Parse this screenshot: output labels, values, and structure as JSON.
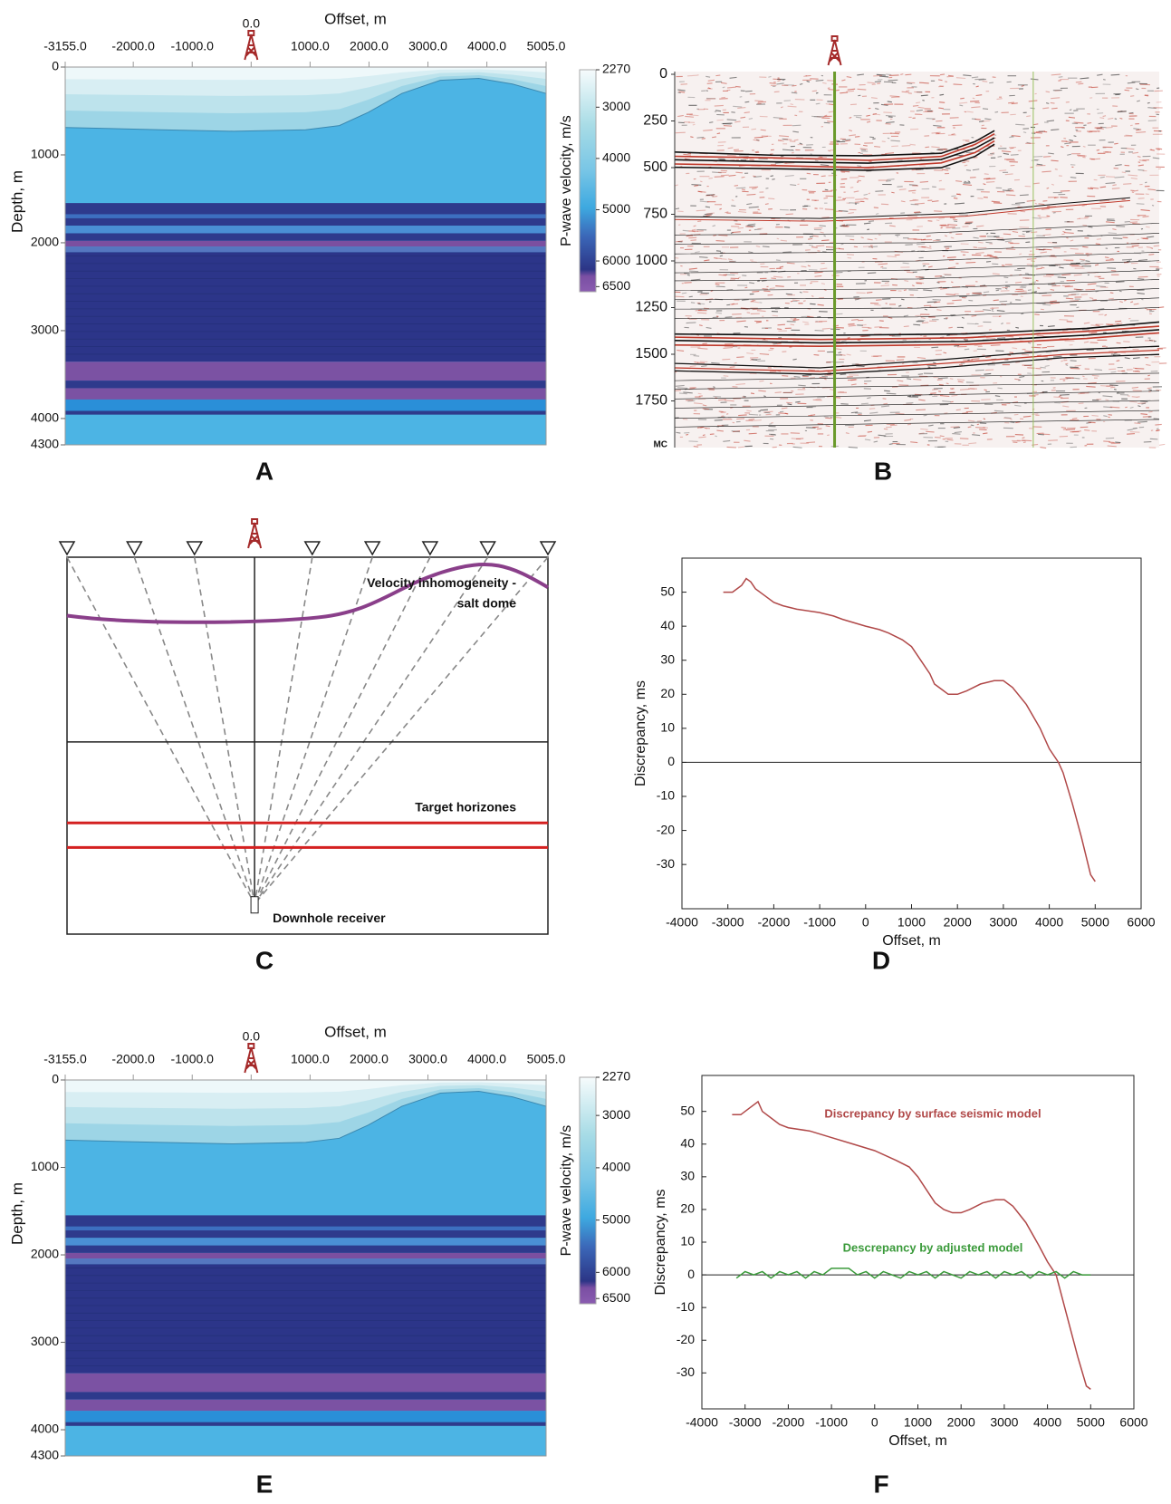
{
  "chart_data": [
    {
      "type": "velocity_model",
      "label": "A",
      "x_label": "Offset, m",
      "y_label": "Depth, m",
      "xlim": [
        -3155,
        5005
      ],
      "xticks": [
        {
          "value": -3155,
          "label": "-3155.0"
        },
        {
          "value": -2000,
          "label": "-2000.0"
        },
        {
          "value": -1000,
          "label": "-1000.0"
        },
        {
          "value": 0,
          "label": "0.0"
        },
        {
          "value": 1000,
          "label": "1000.0"
        },
        {
          "value": 2000,
          "label": "2000.0"
        },
        {
          "value": 3000,
          "label": "3000.0"
        },
        {
          "value": 4000,
          "label": "4000.0"
        },
        {
          "value": 5005,
          "label": "5005.0"
        }
      ],
      "ylim": [
        0,
        4300
      ],
      "yticks": [
        0,
        1000,
        2000,
        3000,
        4000,
        4300
      ],
      "colorbar": {
        "label": "P-wave velocity, m/s",
        "clim": [
          2270,
          6600
        ],
        "ticks": [
          2270,
          3000,
          4000,
          5000,
          6000,
          6500
        ]
      }
    },
    {
      "type": "seismic_section",
      "label": "B",
      "ylim": [
        0,
        2000
      ],
      "yticks": [
        0,
        250,
        500,
        750,
        1000,
        1250,
        1500,
        1750
      ],
      "y_end_label": "MC"
    },
    {
      "type": "diagram",
      "label": "C",
      "annotations": [
        "Velocity inhomogeneity -",
        "salt dome",
        "Target horizones",
        "Downhole receiver"
      ]
    },
    {
      "type": "line",
      "label": "D",
      "x_label": "Offset, m",
      "y_label": "Discrepancy, ms",
      "xlim": [
        -4000,
        6000
      ],
      "xticks": [
        -4000,
        -3000,
        -2000,
        -1000,
        0,
        1000,
        2000,
        3000,
        4000,
        5000,
        6000
      ],
      "ylim": [
        -43,
        60
      ],
      "yticks": [
        -30,
        -20,
        -10,
        0,
        10,
        20,
        30,
        40,
        50
      ],
      "zero_line": true,
      "series": [
        {
          "color": "#b04848",
          "x": [
            -3100,
            -2900,
            -2700,
            -2600,
            -2500,
            -2400,
            -2200,
            -2000,
            -1800,
            -1500,
            -1000,
            -700,
            -500,
            0,
            300,
            500,
            800,
            1000,
            1200,
            1400,
            1500,
            1600,
            1700,
            1800,
            2000,
            2200,
            2500,
            2800,
            3000,
            3200,
            3500,
            3800,
            4000,
            4200,
            4300,
            4500,
            4700,
            4900,
            5000
          ],
          "values": [
            50,
            50,
            52,
            54,
            53,
            51,
            49,
            47,
            46,
            45,
            44,
            43,
            42,
            40,
            39,
            38,
            36,
            34,
            30,
            26,
            23,
            22,
            21,
            20,
            20,
            21,
            23,
            24,
            24,
            22,
            17,
            10,
            4,
            0,
            -3,
            -12,
            -22,
            -33,
            -35
          ]
        }
      ]
    },
    {
      "type": "velocity_model",
      "label": "E",
      "x_label": "Offset, m",
      "y_label": "Depth, m",
      "xlim": [
        -3155,
        5005
      ],
      "xticks": [
        {
          "value": -3155,
          "label": "-3155.0"
        },
        {
          "value": -2000,
          "label": "-2000.0"
        },
        {
          "value": -1000,
          "label": "-1000.0"
        },
        {
          "value": 0,
          "label": "0.0"
        },
        {
          "value": 1000,
          "label": "1000.0"
        },
        {
          "value": 2000,
          "label": "2000.0"
        },
        {
          "value": 3000,
          "label": "3000.0"
        },
        {
          "value": 4000,
          "label": "4000.0"
        },
        {
          "value": 5005,
          "label": "5005.0"
        }
      ],
      "ylim": [
        0,
        4300
      ],
      "yticks": [
        0,
        1000,
        2000,
        3000,
        4000,
        4300
      ],
      "colorbar": {
        "label": "P-wave velocity, m/s",
        "clim": [
          2270,
          6600
        ],
        "ticks": [
          2270,
          3000,
          4000,
          5000,
          6000,
          6500
        ]
      }
    },
    {
      "type": "line",
      "label": "F",
      "x_label": "Offset, m",
      "y_label": "Discrepancy, ms",
      "xlim": [
        -4000,
        6000
      ],
      "xticks": [
        -4000,
        -3000,
        -2000,
        -1000,
        0,
        1000,
        2000,
        3000,
        4000,
        5000,
        6000
      ],
      "ylim": [
        -41,
        61
      ],
      "yticks": [
        -30,
        -20,
        -10,
        0,
        10,
        20,
        30,
        40,
        50
      ],
      "zero_line": true,
      "series": [
        {
          "name": "Discrepancy by surface seismic model",
          "color": "#b04848",
          "x": [
            -3300,
            -3100,
            -2900,
            -2700,
            -2600,
            -2400,
            -2200,
            -2000,
            -1500,
            -1000,
            -500,
            0,
            500,
            800,
            1000,
            1200,
            1400,
            1600,
            1800,
            2000,
            2200,
            2500,
            2800,
            3000,
            3200,
            3500,
            3800,
            4000,
            4200,
            4300,
            4500,
            4700,
            4900,
            5000
          ],
          "values": [
            49,
            49,
            51,
            53,
            50,
            48,
            46,
            45,
            44,
            42,
            40,
            38,
            35,
            33,
            30,
            26,
            22,
            20,
            19,
            19,
            20,
            22,
            23,
            23,
            21,
            16,
            9,
            4,
            0,
            -5,
            -15,
            -25,
            -34,
            -35
          ]
        },
        {
          "name": "Descrepancy by adjusted model",
          "color": "#3a9a3a",
          "x": [
            -3200,
            -3000,
            -2800,
            -2600,
            -2400,
            -2200,
            -2000,
            -1800,
            -1600,
            -1400,
            -1200,
            -1000,
            -800,
            -600,
            -400,
            -200,
            0,
            200,
            400,
            600,
            800,
            1000,
            1200,
            1400,
            1600,
            1800,
            2000,
            2200,
            2400,
            2600,
            2800,
            3000,
            3200,
            3400,
            3600,
            3800,
            4000,
            4200,
            4400,
            4600,
            4800,
            5000
          ],
          "values": [
            -1,
            1,
            0,
            1,
            -1,
            1,
            0,
            1,
            -1,
            1,
            0,
            2,
            2,
            2,
            0,
            1,
            -1,
            1,
            0,
            -1,
            1,
            0,
            1,
            -1,
            1,
            0,
            -1,
            1,
            0,
            1,
            -1,
            1,
            0,
            1,
            -1,
            1,
            0,
            1,
            -1,
            1,
            0,
            0
          ]
        }
      ]
    }
  ]
}
